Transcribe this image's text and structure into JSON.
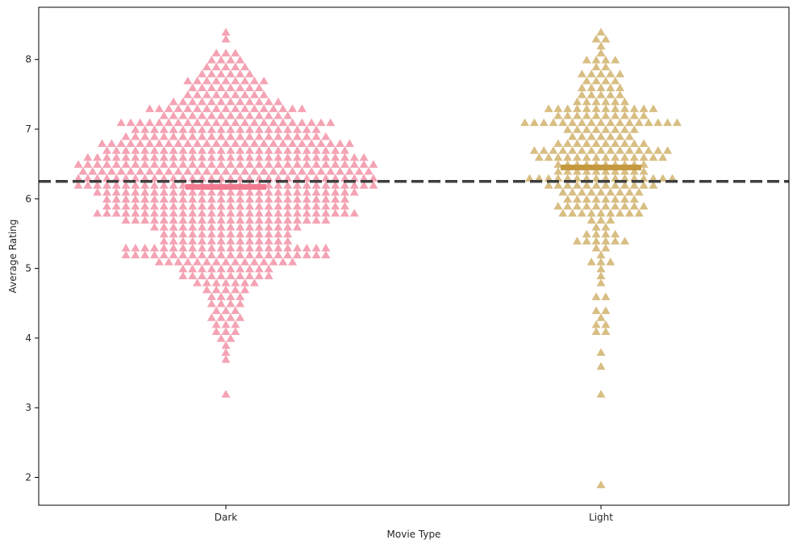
{
  "chart_data": {
    "type": "scatter",
    "subtype": "swarm",
    "marker": "triangle",
    "title": "",
    "xlabel": "Movie Type",
    "ylabel": "Average Rating",
    "categories": [
      "Dark",
      "Light"
    ],
    "ylim": [
      1.6,
      8.75
    ],
    "yticks": [
      2,
      3,
      4,
      5,
      6,
      7,
      8
    ],
    "grid": false,
    "reference_line": {
      "value": 6.25,
      "style": "dashed",
      "color": "#3f3f3f"
    },
    "series": [
      {
        "category": "Dark",
        "color": "#f4a3b4",
        "mean_color": "#f07a90",
        "mean": 6.17,
        "rows": [
          {
            "y": 8.4,
            "n": 1
          },
          {
            "y": 8.3,
            "n": 1
          },
          {
            "y": 8.1,
            "n": 3
          },
          {
            "y": 8.0,
            "n": 4
          },
          {
            "y": 7.9,
            "n": 5
          },
          {
            "y": 7.8,
            "n": 6
          },
          {
            "y": 7.7,
            "n": 9
          },
          {
            "y": 7.6,
            "n": 8
          },
          {
            "y": 7.5,
            "n": 9
          },
          {
            "y": 7.4,
            "n": 12
          },
          {
            "y": 7.3,
            "n": 17
          },
          {
            "y": 7.2,
            "n": 14
          },
          {
            "y": 7.1,
            "n": 23
          },
          {
            "y": 7.0,
            "n": 20
          },
          {
            "y": 6.9,
            "n": 22
          },
          {
            "y": 6.8,
            "n": 27
          },
          {
            "y": 6.7,
            "n": 26
          },
          {
            "y": 6.6,
            "n": 30
          },
          {
            "y": 6.5,
            "n": 32
          },
          {
            "y": 6.4,
            "n": 31
          },
          {
            "y": 6.3,
            "n": 32
          },
          {
            "y": 6.2,
            "n": 32
          },
          {
            "y": 6.1,
            "n": 28
          },
          {
            "y": 6.0,
            "n": 26
          },
          {
            "y": 5.9,
            "n": 26
          },
          {
            "y": 5.8,
            "n": 28
          },
          {
            "y": 5.7,
            "n": 22
          },
          {
            "y": 5.6,
            "n": 16
          },
          {
            "y": 5.5,
            "n": 14
          },
          {
            "y": 5.4,
            "n": 14
          },
          {
            "y": 5.3,
            "n": 22
          },
          {
            "y": 5.2,
            "n": 22
          },
          {
            "y": 5.1,
            "n": 15
          },
          {
            "y": 5.0,
            "n": 10
          },
          {
            "y": 4.9,
            "n": 10
          },
          {
            "y": 4.8,
            "n": 7
          },
          {
            "y": 4.7,
            "n": 5
          },
          {
            "y": 4.6,
            "n": 4
          },
          {
            "y": 4.5,
            "n": 4
          },
          {
            "y": 4.4,
            "n": 3
          },
          {
            "y": 4.3,
            "n": 4
          },
          {
            "y": 4.2,
            "n": 3
          },
          {
            "y": 4.1,
            "n": 3
          },
          {
            "y": 4.0,
            "n": 2
          },
          {
            "y": 3.9,
            "n": 1
          },
          {
            "y": 3.8,
            "n": 1
          },
          {
            "y": 3.7,
            "n": 1
          },
          {
            "y": 3.2,
            "n": 1
          }
        ]
      },
      {
        "category": "Light",
        "color": "#d8be83",
        "mean_color": "#c4993f",
        "mean": 6.45,
        "rows": [
          {
            "y": 8.4,
            "n": 1
          },
          {
            "y": 8.3,
            "n": 2
          },
          {
            "y": 8.2,
            "n": 1
          },
          {
            "y": 8.1,
            "n": 1
          },
          {
            "y": 8.0,
            "n": 4
          },
          {
            "y": 7.9,
            "n": 2
          },
          {
            "y": 7.8,
            "n": 5
          },
          {
            "y": 7.7,
            "n": 4
          },
          {
            "y": 7.6,
            "n": 5
          },
          {
            "y": 7.5,
            "n": 5
          },
          {
            "y": 7.4,
            "n": 6
          },
          {
            "y": 7.3,
            "n": 12
          },
          {
            "y": 7.2,
            "n": 10
          },
          {
            "y": 7.1,
            "n": 17
          },
          {
            "y": 7.0,
            "n": 8
          },
          {
            "y": 6.9,
            "n": 7
          },
          {
            "y": 6.8,
            "n": 10
          },
          {
            "y": 6.7,
            "n": 15
          },
          {
            "y": 6.6,
            "n": 14
          },
          {
            "y": 6.5,
            "n": 10
          },
          {
            "y": 6.4,
            "n": 10
          },
          {
            "y": 6.3,
            "n": 16
          },
          {
            "y": 6.2,
            "n": 12
          },
          {
            "y": 6.1,
            "n": 9
          },
          {
            "y": 6.0,
            "n": 8
          },
          {
            "y": 5.9,
            "n": 10
          },
          {
            "y": 5.8,
            "n": 9
          },
          {
            "y": 5.7,
            "n": 3
          },
          {
            "y": 5.6,
            "n": 2
          },
          {
            "y": 5.5,
            "n": 4
          },
          {
            "y": 5.4,
            "n": 6
          },
          {
            "y": 5.3,
            "n": 2
          },
          {
            "y": 5.2,
            "n": 1
          },
          {
            "y": 5.1,
            "n": 3
          },
          {
            "y": 5.0,
            "n": 1
          },
          {
            "y": 4.9,
            "n": 1
          },
          {
            "y": 4.8,
            "n": 1
          },
          {
            "y": 4.6,
            "n": 2
          },
          {
            "y": 4.4,
            "n": 2
          },
          {
            "y": 4.3,
            "n": 1
          },
          {
            "y": 4.2,
            "n": 2
          },
          {
            "y": 4.1,
            "n": 2
          },
          {
            "y": 3.8,
            "n": 1
          },
          {
            "y": 3.6,
            "n": 1
          },
          {
            "y": 3.2,
            "n": 1
          },
          {
            "y": 1.9,
            "n": 1
          }
        ]
      }
    ]
  }
}
